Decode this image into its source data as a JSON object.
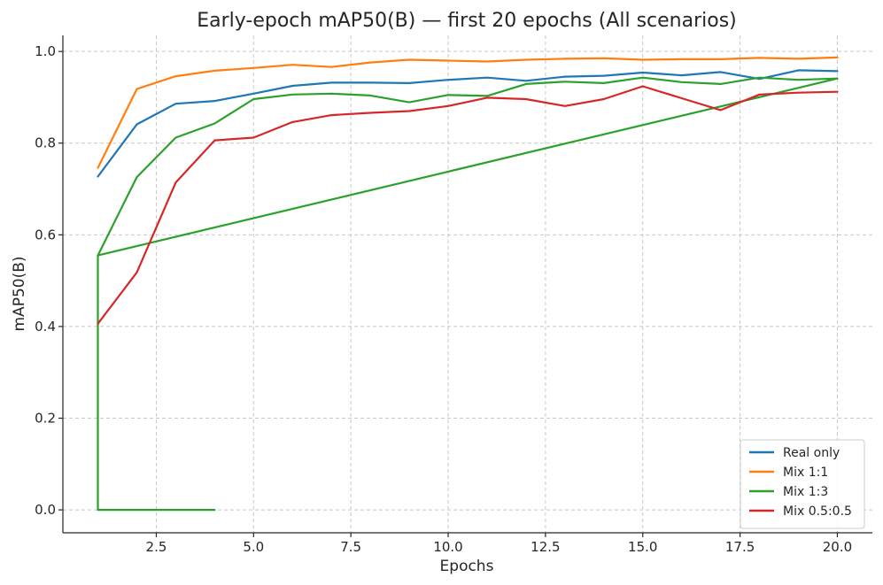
{
  "chart_data": {
    "type": "line",
    "title": "Early-epoch mAP50(B) — first 20 epochs (All scenarios)",
    "xlabel": "Epochs",
    "ylabel": "mAP50(B)",
    "xlim": [
      0.1,
      20.9
    ],
    "ylim": [
      -0.05,
      1.035
    ],
    "xticks": [
      2.5,
      5.0,
      7.5,
      10.0,
      12.5,
      15.0,
      17.5,
      20.0
    ],
    "xtick_labels": [
      "2.5",
      "5.0",
      "7.5",
      "10.0",
      "12.5",
      "15.0",
      "17.5",
      "20.0"
    ],
    "yticks": [
      0.0,
      0.2,
      0.4,
      0.6,
      0.8,
      1.0
    ],
    "ytick_labels": [
      "0.0",
      "0.2",
      "0.4",
      "0.6",
      "0.8",
      "1.0"
    ],
    "grid": true,
    "legend_position": "bottom-right",
    "series": [
      {
        "name": "Real only",
        "color": "#1f77b4",
        "x": [
          1,
          2,
          3,
          4,
          5,
          6,
          7,
          8,
          9,
          10,
          11,
          12,
          13,
          14,
          15,
          16,
          17,
          18,
          19,
          20
        ],
        "y": [
          0.727,
          0.841,
          0.886,
          0.892,
          0.908,
          0.925,
          0.932,
          0.932,
          0.931,
          0.938,
          0.943,
          0.936,
          0.945,
          0.947,
          0.954,
          0.948,
          0.955,
          0.94,
          0.959,
          0.957
        ]
      },
      {
        "name": "Mix 1:1",
        "color": "#ff7f0e",
        "x": [
          1,
          2,
          3,
          4,
          5,
          6,
          7,
          8,
          9,
          10,
          11,
          12,
          13,
          14,
          15,
          16,
          17,
          18,
          19,
          20
        ],
        "y": [
          0.746,
          0.918,
          0.946,
          0.958,
          0.964,
          0.971,
          0.966,
          0.976,
          0.982,
          0.98,
          0.978,
          0.982,
          0.984,
          0.985,
          0.982,
          0.983,
          0.983,
          0.986,
          0.984,
          0.987
        ]
      },
      {
        "name": "Mix 1:3",
        "color": "#2ca02c",
        "x": [
          1,
          2,
          3,
          4,
          5,
          6,
          7,
          8,
          9,
          10,
          11,
          12,
          13,
          14,
          15,
          16,
          17,
          18,
          19,
          20,
          1,
          1,
          2,
          3,
          4
        ],
        "y": [
          0.555,
          0.726,
          0.812,
          0.843,
          0.896,
          0.906,
          0.908,
          0.904,
          0.889,
          0.905,
          0.903,
          0.929,
          0.934,
          0.931,
          0.943,
          0.933,
          0.929,
          0.943,
          0.938,
          0.941,
          0.555,
          0.0,
          0.0,
          0.0,
          0.0
        ]
      },
      {
        "name": "Mix 0.5:0.5",
        "color": "#d62728",
        "x": [
          1,
          2,
          3,
          4,
          5,
          6,
          7,
          8,
          9,
          10,
          11,
          12,
          13,
          14,
          15,
          16,
          17,
          18,
          19,
          20
        ],
        "y": [
          0.406,
          0.518,
          0.714,
          0.806,
          0.812,
          0.846,
          0.861,
          0.866,
          0.87,
          0.881,
          0.899,
          0.896,
          0.881,
          0.896,
          0.924,
          0.898,
          0.872,
          0.906,
          0.91,
          0.912
        ]
      }
    ]
  }
}
